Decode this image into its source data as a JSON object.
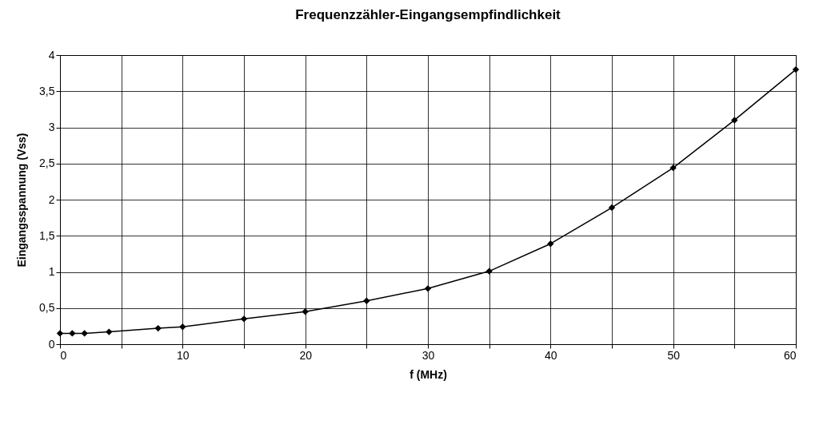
{
  "chart_data": {
    "type": "line",
    "title": "Frequenzzähler-Eingangsempfindlichkeit",
    "xlabel": "f (MHz)",
    "ylabel": "Eingangsspannung (Vss)",
    "x": [
      0,
      1,
      2,
      4,
      8,
      10,
      15,
      20,
      25,
      30,
      35,
      40,
      45,
      50,
      55,
      60
    ],
    "series": [
      {
        "color": "#000000",
        "values": [
          0.15,
          0.15,
          0.15,
          0.17,
          0.22,
          0.24,
          0.35,
          0.45,
          0.6,
          0.77,
          1.01,
          1.39,
          1.89,
          2.44,
          3.1,
          3.8
        ]
      }
    ],
    "xlim": [
      0,
      60
    ],
    "xticks": [
      0,
      {
        "value": 5,
        "label": null
      },
      10,
      {
        "value": 15,
        "label": null
      },
      20,
      {
        "value": 25,
        "label": null
      },
      30,
      {
        "value": 35,
        "label": null
      },
      40,
      {
        "value": 45,
        "label": null
      },
      50,
      {
        "value": 55,
        "label": null
      },
      60
    ],
    "ylim": [
      0,
      4
    ],
    "yticks": [
      0,
      {
        "value": 0.5,
        "label": "0,5"
      },
      1,
      {
        "value": 1.5,
        "label": "1,5"
      },
      2,
      {
        "value": 2.5,
        "label": "2,5"
      },
      3,
      {
        "value": 3.5,
        "label": "3,5"
      },
      4
    ],
    "grid": true,
    "legend": false,
    "marker": "diamond",
    "line_style": "solid"
  }
}
